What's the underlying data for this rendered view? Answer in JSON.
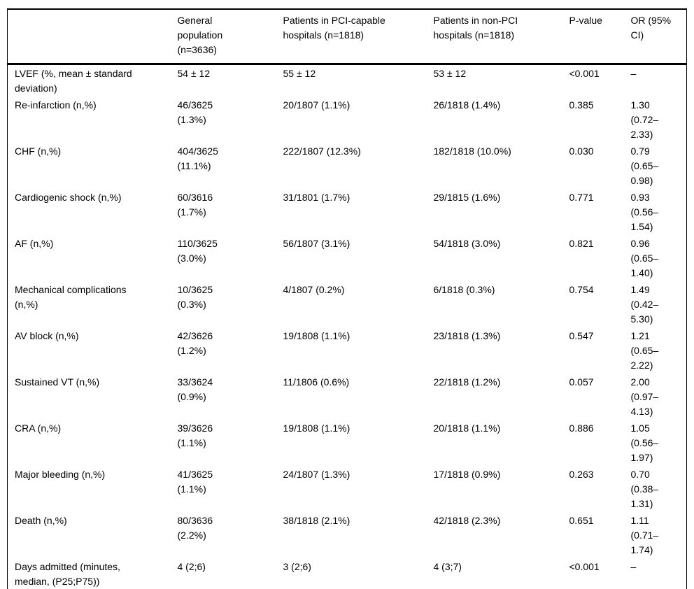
{
  "colors": {
    "text": "#000000",
    "background": "#ffffff",
    "rule": "#000000"
  },
  "table": {
    "columns": [
      "",
      "General population (n=3636)",
      "Patients in PCI-capable hospitals (n=1818)",
      "Patients in non-PCI hospitals (n=1818)",
      "P-value",
      "OR (95% CI)"
    ],
    "rows": [
      {
        "label": "LVEF (%, mean ± standard deviation)",
        "general": "54 ± 12",
        "pci": "55 ± 12",
        "non_pci": "53 ± 12",
        "p_value": "<0.001",
        "p_bold": true,
        "or_ci": "–"
      },
      {
        "label": "Re-infarction (n,%)",
        "general": "46/3625 (1.3%)",
        "pci": "20/1807 (1.1%)",
        "non_pci": "26/1818 (1.4%)",
        "p_value": "0.385",
        "p_bold": false,
        "or_ci": "1.30 (0.72–2.33)"
      },
      {
        "label": "CHF (n,%)",
        "general": "404/3625 (11.1%)",
        "pci": "222/1807 (12.3%)",
        "non_pci": "182/1818 (10.0%)",
        "p_value": "0.030",
        "p_bold": false,
        "or_ci": "0.79 (0.65–0.98)"
      },
      {
        "label": "Cardiogenic shock (n,%)",
        "general": "60/3616 (1.7%)",
        "pci": "31/1801 (1.7%)",
        "non_pci": "29/1815 (1.6%)",
        "p_value": "0.771",
        "p_bold": false,
        "or_ci": "0.93 (0.56–1.54)"
      },
      {
        "label": "AF (n,%)",
        "general": "110/3625 (3.0%)",
        "pci": "56/1807 (3.1%)",
        "non_pci": "54/1818 (3.0%)",
        "p_value": "0.821",
        "p_bold": false,
        "or_ci": "0.96 (0.65–1.40)"
      },
      {
        "label": "Mechanical complications (n,%)",
        "general": "10/3625 (0.3%)",
        "pci": "4/1807 (0.2%)",
        "non_pci": "6/1818 (0.3%)",
        "p_value": "0.754",
        "p_bold": false,
        "or_ci": "1.49 (0.42–5.30)"
      },
      {
        "label": "AV block (n,%)",
        "general": "42/3626 (1.2%)",
        "pci": "19/1808 (1.1%)",
        "non_pci": "23/1818 (1.3%)",
        "p_value": "0.547",
        "p_bold": false,
        "or_ci": "1.21 (0.65–2.22)"
      },
      {
        "label": "Sustained VT (n,%)",
        "general": "33/3624 (0.9%)",
        "pci": "11/1806 (0.6%)",
        "non_pci": "22/1818 (1.2%)",
        "p_value": "0.057",
        "p_bold": false,
        "or_ci": "2.00 (0.97–4.13)"
      },
      {
        "label": "CRA (n,%)",
        "general": "39/3626 (1.1%)",
        "pci": "19/1808 (1.1%)",
        "non_pci": "20/1818 (1.1%)",
        "p_value": "0.886",
        "p_bold": false,
        "or_ci": "1.05 (0.56–1.97)"
      },
      {
        "label": "Major bleeding (n,%)",
        "general": "41/3625 (1.1%)",
        "pci": "24/1807 (1.3%)",
        "non_pci": "17/1818 (0.9%)",
        "p_value": "0.263",
        "p_bold": false,
        "or_ci": "0.70 (0.38–1.31)"
      },
      {
        "label": "Death (n,%)",
        "general": "80/3636 (2.2%)",
        "pci": "38/1818 (2.1%)",
        "non_pci": "42/1818 (2.3%)",
        "p_value": "0.651",
        "p_bold": false,
        "or_ci": "1.11 (0.71–1.74)"
      },
      {
        "label": "Days admitted (minutes, median, (P25;P75))",
        "general": "4 (2;6)",
        "pci": "3 (2;6)",
        "non_pci": "4 (3;7)",
        "p_value": "<0.001",
        "p_bold": true,
        "or_ci": "–"
      }
    ]
  }
}
